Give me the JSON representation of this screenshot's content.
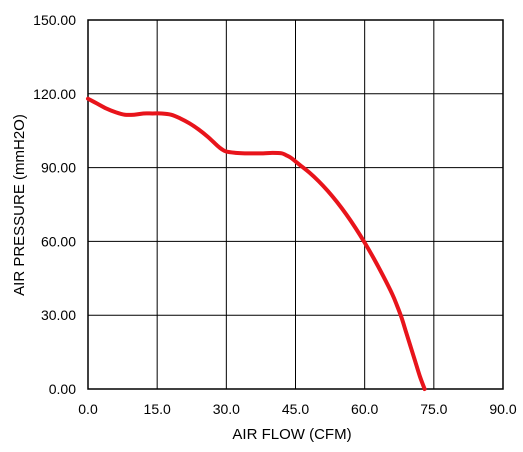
{
  "chart_data": {
    "type": "line",
    "title": "",
    "xlabel": "AIR FLOW   (CFM)",
    "ylabel": "AIR PRESSURE   (mmH2O)",
    "xlim": [
      0,
      90
    ],
    "ylim": [
      0,
      150
    ],
    "x_ticks": [
      "0.0",
      "15.0",
      "30.0",
      "45.0",
      "60.0",
      "75.0",
      "90.0"
    ],
    "y_ticks": [
      "0.00",
      "30.00",
      "60.00",
      "90.00",
      "120.00",
      "150.00"
    ],
    "grid": true,
    "legend": "none",
    "series": [
      {
        "color": "#e8141b",
        "x": [
          0,
          2,
          4,
          6,
          8,
          10,
          12,
          14,
          16,
          18,
          20,
          22,
          24,
          26,
          28,
          29,
          30,
          32,
          34,
          36,
          38,
          40,
          42,
          43,
          44,
          45,
          46,
          48,
          50,
          52,
          54,
          56,
          58,
          60,
          62,
          64,
          66,
          67,
          68,
          69,
          70,
          71,
          72,
          73
        ],
        "y": [
          118,
          116,
          114,
          112.5,
          111.5,
          111.5,
          112,
          112,
          112,
          111.5,
          110,
          108,
          105.5,
          102.5,
          99,
          97.5,
          96.5,
          96,
          95.8,
          95.8,
          95.8,
          96,
          95.8,
          95,
          94,
          92.5,
          91,
          88,
          84.5,
          80.5,
          76,
          71,
          65.5,
          59.5,
          53,
          46,
          38.5,
          34,
          29,
          23,
          17,
          11,
          5,
          0
        ]
      }
    ]
  }
}
